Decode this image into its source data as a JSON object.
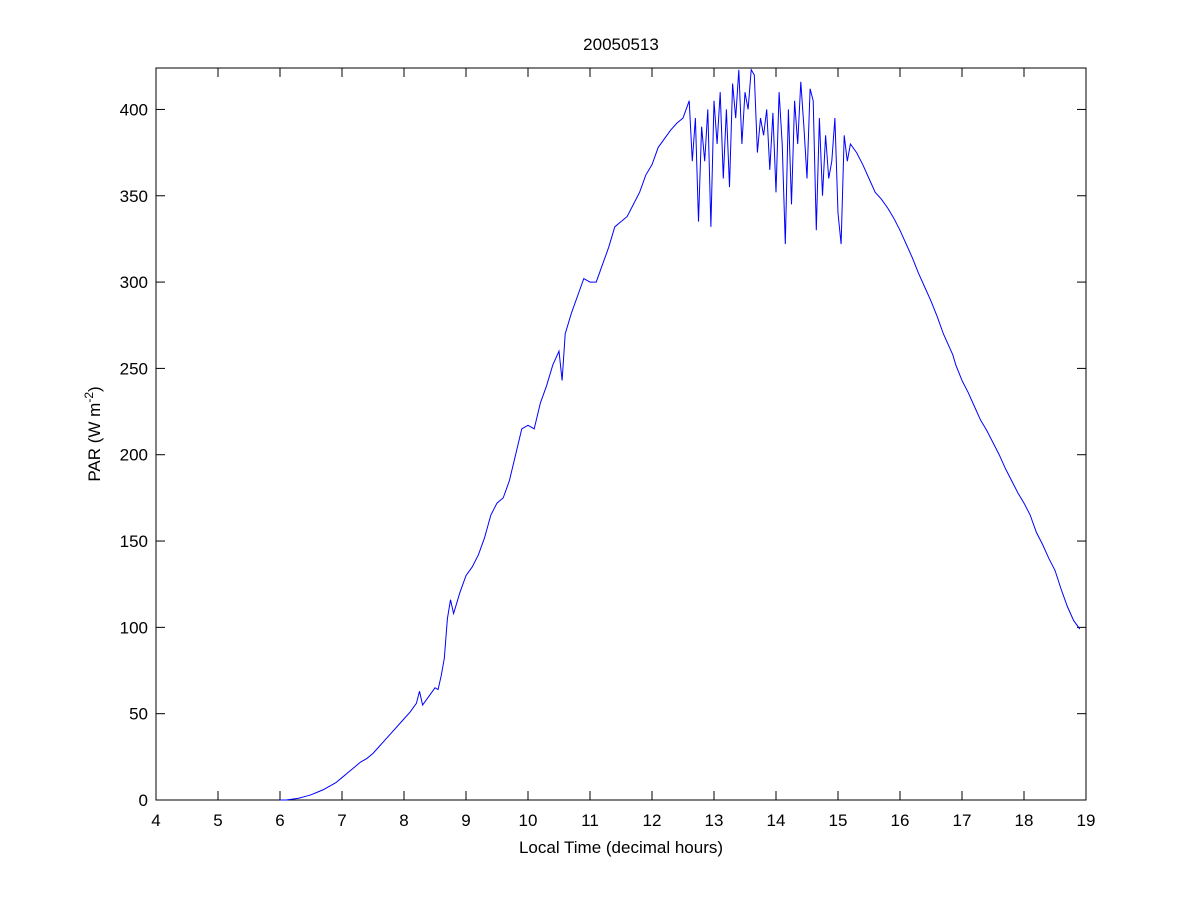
{
  "chart_data": {
    "type": "line",
    "title": "20050513",
    "xlabel": "Local Time (decimal hours)",
    "ylabel": {
      "text": "PAR (W m",
      "superscript": "-2",
      "suffix": ")"
    },
    "x": [
      6.0,
      6.1,
      6.2,
      6.3,
      6.4,
      6.5,
      6.6,
      6.7,
      6.8,
      6.9,
      7.0,
      7.1,
      7.2,
      7.3,
      7.4,
      7.5,
      7.6,
      7.7,
      7.8,
      7.9,
      8.0,
      8.1,
      8.2,
      8.25,
      8.3,
      8.4,
      8.5,
      8.55,
      8.6,
      8.65,
      8.7,
      8.75,
      8.8,
      8.9,
      9.0,
      9.1,
      9.2,
      9.3,
      9.4,
      9.5,
      9.6,
      9.7,
      9.8,
      9.9,
      10.0,
      10.1,
      10.2,
      10.3,
      10.4,
      10.5,
      10.55,
      10.6,
      10.7,
      10.8,
      10.9,
      11.0,
      11.1,
      11.2,
      11.3,
      11.4,
      11.5,
      11.6,
      11.7,
      11.8,
      11.9,
      12.0,
      12.1,
      12.2,
      12.3,
      12.4,
      12.5,
      12.6,
      12.65,
      12.7,
      12.75,
      12.8,
      12.85,
      12.9,
      12.95,
      13.0,
      13.05,
      13.1,
      13.15,
      13.2,
      13.25,
      13.3,
      13.35,
      13.4,
      13.45,
      13.5,
      13.55,
      13.6,
      13.65,
      13.7,
      13.75,
      13.8,
      13.85,
      13.9,
      13.95,
      14.0,
      14.05,
      14.1,
      14.15,
      14.2,
      14.25,
      14.3,
      14.35,
      14.4,
      14.45,
      14.5,
      14.55,
      14.6,
      14.65,
      14.7,
      14.75,
      14.8,
      14.85,
      14.9,
      14.95,
      15.0,
      15.05,
      15.1,
      15.15,
      15.2,
      15.3,
      15.4,
      15.5,
      15.6,
      15.7,
      15.8,
      15.9,
      16.0,
      16.1,
      16.2,
      16.3,
      16.4,
      16.5,
      16.6,
      16.7,
      16.8,
      16.85,
      16.9,
      17.0,
      17.1,
      17.2,
      17.3,
      17.4,
      17.5,
      17.6,
      17.7,
      17.8,
      17.9,
      18.0,
      18.1,
      18.2,
      18.3,
      18.4,
      18.5,
      18.6,
      18.7,
      18.8,
      18.9
    ],
    "series": [
      {
        "color": "#0000ff",
        "values": [
          0,
          0,
          0.5,
          1,
          2,
          3,
          4.5,
          6,
          8,
          10,
          13,
          16,
          19,
          22,
          24,
          27,
          31,
          35,
          39,
          43,
          47,
          51,
          56,
          63,
          55,
          60,
          65,
          64,
          72,
          82,
          105,
          116,
          108,
          120,
          130,
          135,
          142,
          152,
          165,
          172,
          175,
          185,
          200,
          215,
          217,
          215,
          230,
          240,
          252,
          260,
          243,
          270,
          282,
          292,
          302,
          300,
          300,
          310,
          320,
          332,
          335,
          338,
          345,
          352,
          362,
          368,
          378,
          383,
          388,
          392,
          395,
          405,
          370,
          395,
          335,
          390,
          370,
          400,
          332,
          405,
          380,
          410,
          360,
          400,
          355,
          415,
          395,
          423,
          380,
          410,
          400,
          423,
          420,
          375,
          395,
          385,
          400,
          365,
          398,
          352,
          410,
          380,
          322,
          400,
          345,
          405,
          380,
          416,
          390,
          360,
          412,
          405,
          330,
          395,
          350,
          385,
          360,
          370,
          395,
          340,
          322,
          385,
          370,
          380,
          375,
          368,
          360,
          352,
          348,
          343,
          337,
          330,
          322,
          314,
          305,
          297,
          289,
          280,
          270,
          262,
          258,
          252,
          243,
          236,
          228,
          220,
          214,
          207,
          200,
          192,
          185,
          178,
          172,
          165,
          155,
          148,
          140,
          133,
          122,
          112,
          104,
          99
        ]
      }
    ],
    "xlim": [
      4,
      19
    ],
    "xticks": [
      4,
      5,
      6,
      7,
      8,
      9,
      10,
      11,
      12,
      13,
      14,
      15,
      16,
      17,
      18,
      19
    ],
    "ylim": [
      0,
      424
    ],
    "yticks": [
      0,
      50,
      100,
      150,
      200,
      250,
      300,
      350,
      400
    ]
  }
}
